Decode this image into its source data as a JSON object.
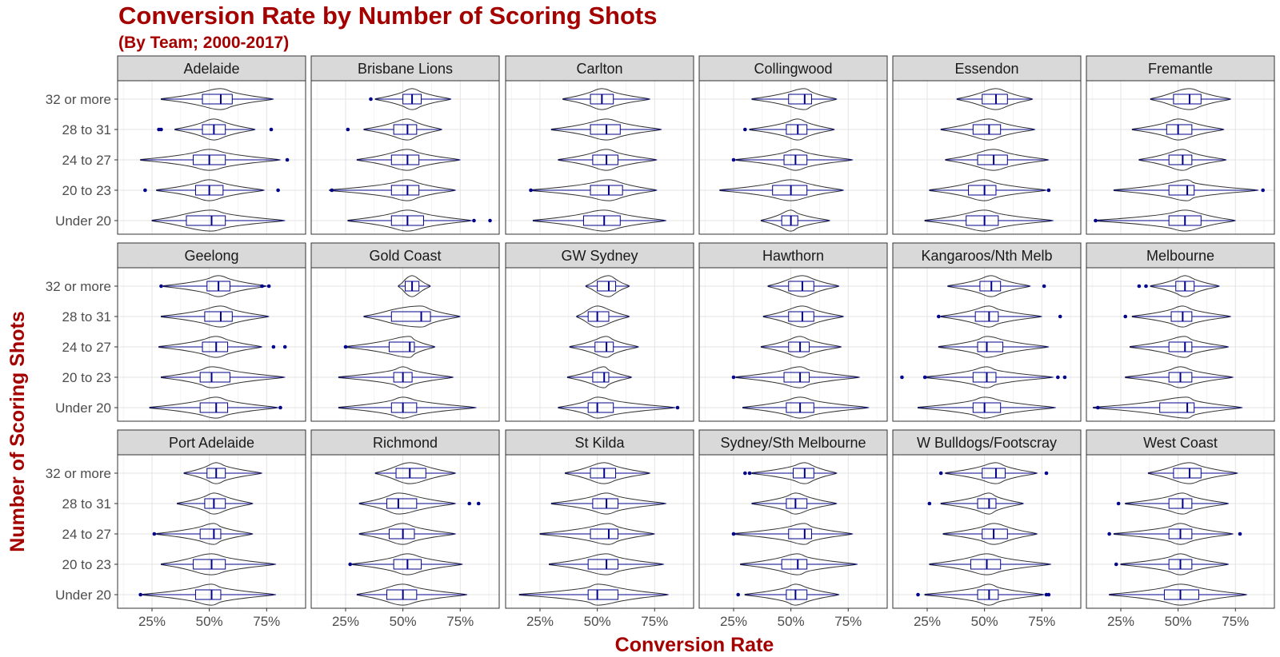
{
  "chart_data": {
    "type": "violin",
    "title": "Conversion Rate by Number of Scoring Shots",
    "subtitle": "(By Team; 2000-2017)",
    "xlabel": "Conversion Rate",
    "ylabel": "Number of Scoring Shots",
    "xlim": [
      0.1,
      0.92
    ],
    "x_ticks": [
      0.25,
      0.5,
      0.75
    ],
    "x_tick_labels": [
      "25%",
      "50%",
      "75%"
    ],
    "categories": [
      "32 or more",
      "28 to 31",
      "24 to 27",
      "20 to 23",
      "Under 20"
    ],
    "grid": true,
    "colors": {
      "violin": "#333333",
      "box": "#00008b",
      "title": "#a50000",
      "strip": "#d9d9d9"
    },
    "panels": [
      {
        "team": "Adelaide",
        "groups": [
          {
            "min": 0.29,
            "q1": 0.47,
            "median": 0.55,
            "q3": 0.6,
            "max": 0.78,
            "outliers": []
          },
          {
            "min": 0.35,
            "q1": 0.47,
            "median": 0.52,
            "q3": 0.57,
            "max": 0.7,
            "outliers": [
              0.28,
              0.29,
              0.77
            ]
          },
          {
            "min": 0.2,
            "q1": 0.43,
            "median": 0.5,
            "q3": 0.57,
            "max": 0.81,
            "outliers": [
              0.84
            ]
          },
          {
            "min": 0.27,
            "q1": 0.44,
            "median": 0.5,
            "q3": 0.56,
            "max": 0.74,
            "outliers": [
              0.22,
              0.8
            ]
          },
          {
            "min": 0.25,
            "q1": 0.4,
            "median": 0.51,
            "q3": 0.57,
            "max": 0.83,
            "outliers": []
          }
        ]
      },
      {
        "team": "Brisbane Lions",
        "groups": [
          {
            "min": 0.38,
            "q1": 0.5,
            "median": 0.54,
            "q3": 0.58,
            "max": 0.71,
            "outliers": [
              0.36
            ]
          },
          {
            "min": 0.33,
            "q1": 0.46,
            "median": 0.52,
            "q3": 0.56,
            "max": 0.67,
            "outliers": [
              0.26
            ]
          },
          {
            "min": 0.3,
            "q1": 0.45,
            "median": 0.52,
            "q3": 0.57,
            "max": 0.75,
            "outliers": []
          },
          {
            "min": 0.18,
            "q1": 0.45,
            "median": 0.52,
            "q3": 0.57,
            "max": 0.73,
            "outliers": [
              0.19
            ]
          },
          {
            "min": 0.26,
            "q1": 0.45,
            "median": 0.52,
            "q3": 0.59,
            "max": 0.8,
            "outliers": [
              0.81,
              0.88
            ]
          }
        ]
      },
      {
        "team": "Carlton",
        "groups": [
          {
            "min": 0.35,
            "q1": 0.47,
            "median": 0.52,
            "q3": 0.57,
            "max": 0.73,
            "outliers": []
          },
          {
            "min": 0.3,
            "q1": 0.47,
            "median": 0.54,
            "q3": 0.6,
            "max": 0.78,
            "outliers": []
          },
          {
            "min": 0.33,
            "q1": 0.48,
            "median": 0.54,
            "q3": 0.59,
            "max": 0.76,
            "outliers": []
          },
          {
            "min": 0.21,
            "q1": 0.47,
            "median": 0.55,
            "q3": 0.61,
            "max": 0.76,
            "outliers": [
              0.21
            ]
          },
          {
            "min": 0.22,
            "q1": 0.44,
            "median": 0.53,
            "q3": 0.6,
            "max": 0.8,
            "outliers": []
          }
        ]
      },
      {
        "team": "Collingwood",
        "groups": [
          {
            "min": 0.33,
            "q1": 0.49,
            "median": 0.56,
            "q3": 0.59,
            "max": 0.7,
            "outliers": []
          },
          {
            "min": 0.32,
            "q1": 0.48,
            "median": 0.53,
            "q3": 0.57,
            "max": 0.69,
            "outliers": [
              0.3
            ]
          },
          {
            "min": 0.26,
            "q1": 0.47,
            "median": 0.52,
            "q3": 0.57,
            "max": 0.77,
            "outliers": [
              0.25
            ]
          },
          {
            "min": 0.19,
            "q1": 0.42,
            "median": 0.5,
            "q3": 0.57,
            "max": 0.73,
            "outliers": []
          },
          {
            "min": 0.37,
            "q1": 0.46,
            "median": 0.5,
            "q3": 0.53,
            "max": 0.67,
            "outliers": []
          }
        ]
      },
      {
        "team": "Essendon",
        "groups": [
          {
            "min": 0.38,
            "q1": 0.49,
            "median": 0.55,
            "q3": 0.6,
            "max": 0.71,
            "outliers": []
          },
          {
            "min": 0.31,
            "q1": 0.45,
            "median": 0.52,
            "q3": 0.57,
            "max": 0.72,
            "outliers": []
          },
          {
            "min": 0.33,
            "q1": 0.47,
            "median": 0.54,
            "q3": 0.6,
            "max": 0.78,
            "outliers": []
          },
          {
            "min": 0.26,
            "q1": 0.43,
            "median": 0.5,
            "q3": 0.55,
            "max": 0.77,
            "outliers": [
              0.78
            ]
          },
          {
            "min": 0.24,
            "q1": 0.42,
            "median": 0.5,
            "q3": 0.56,
            "max": 0.8,
            "outliers": []
          }
        ]
      },
      {
        "team": "Fremantle",
        "groups": [
          {
            "min": 0.38,
            "q1": 0.48,
            "median": 0.55,
            "q3": 0.6,
            "max": 0.73,
            "outliers": []
          },
          {
            "min": 0.3,
            "q1": 0.45,
            "median": 0.5,
            "q3": 0.56,
            "max": 0.7,
            "outliers": []
          },
          {
            "min": 0.33,
            "q1": 0.46,
            "median": 0.52,
            "q3": 0.56,
            "max": 0.71,
            "outliers": []
          },
          {
            "min": 0.22,
            "q1": 0.46,
            "median": 0.54,
            "q3": 0.57,
            "max": 0.85,
            "outliers": [
              0.87
            ]
          },
          {
            "min": 0.14,
            "q1": 0.46,
            "median": 0.53,
            "q3": 0.6,
            "max": 0.75,
            "outliers": [
              0.14
            ]
          }
        ]
      },
      {
        "team": "Geelong",
        "groups": [
          {
            "min": 0.3,
            "q1": 0.49,
            "median": 0.54,
            "q3": 0.59,
            "max": 0.75,
            "outliers": [
              0.29,
              0.73,
              0.76
            ]
          },
          {
            "min": 0.29,
            "q1": 0.48,
            "median": 0.55,
            "q3": 0.6,
            "max": 0.76,
            "outliers": []
          },
          {
            "min": 0.28,
            "q1": 0.47,
            "median": 0.53,
            "q3": 0.58,
            "max": 0.73,
            "outliers": [
              0.78,
              0.83
            ]
          },
          {
            "min": 0.29,
            "q1": 0.46,
            "median": 0.51,
            "q3": 0.59,
            "max": 0.83,
            "outliers": []
          },
          {
            "min": 0.24,
            "q1": 0.46,
            "median": 0.53,
            "q3": 0.58,
            "max": 0.8,
            "outliers": [
              0.81
            ]
          }
        ]
      },
      {
        "team": "Gold Coast",
        "groups": [
          {
            "min": 0.48,
            "q1": 0.51,
            "median": 0.54,
            "q3": 0.57,
            "max": 0.62,
            "outliers": []
          },
          {
            "min": 0.33,
            "q1": 0.45,
            "median": 0.58,
            "q3": 0.62,
            "max": 0.75,
            "outliers": []
          },
          {
            "min": 0.25,
            "q1": 0.44,
            "median": 0.53,
            "q3": 0.55,
            "max": 0.64,
            "outliers": [
              0.25
            ]
          },
          {
            "min": 0.22,
            "q1": 0.46,
            "median": 0.5,
            "q3": 0.54,
            "max": 0.72,
            "outliers": []
          },
          {
            "min": 0.22,
            "q1": 0.45,
            "median": 0.5,
            "q3": 0.56,
            "max": 0.82,
            "outliers": []
          }
        ]
      },
      {
        "team": "GW Sydney",
        "groups": [
          {
            "min": 0.45,
            "q1": 0.5,
            "median": 0.55,
            "q3": 0.58,
            "max": 0.64,
            "outliers": []
          },
          {
            "min": 0.41,
            "q1": 0.46,
            "median": 0.5,
            "q3": 0.55,
            "max": 0.64,
            "outliers": []
          },
          {
            "min": 0.38,
            "q1": 0.49,
            "median": 0.54,
            "q3": 0.57,
            "max": 0.68,
            "outliers": []
          },
          {
            "min": 0.37,
            "q1": 0.48,
            "median": 0.53,
            "q3": 0.55,
            "max": 0.65,
            "outliers": []
          },
          {
            "min": 0.33,
            "q1": 0.46,
            "median": 0.5,
            "q3": 0.57,
            "max": 0.84,
            "outliers": [
              0.85
            ]
          }
        ]
      },
      {
        "team": "Hawthorn",
        "groups": [
          {
            "min": 0.4,
            "q1": 0.49,
            "median": 0.55,
            "q3": 0.6,
            "max": 0.71,
            "outliers": []
          },
          {
            "min": 0.38,
            "q1": 0.49,
            "median": 0.55,
            "q3": 0.6,
            "max": 0.73,
            "outliers": []
          },
          {
            "min": 0.37,
            "q1": 0.49,
            "median": 0.54,
            "q3": 0.58,
            "max": 0.72,
            "outliers": []
          },
          {
            "min": 0.26,
            "q1": 0.47,
            "median": 0.54,
            "q3": 0.58,
            "max": 0.8,
            "outliers": [
              0.25
            ]
          },
          {
            "min": 0.29,
            "q1": 0.48,
            "median": 0.54,
            "q3": 0.6,
            "max": 0.84,
            "outliers": []
          }
        ]
      },
      {
        "team": "Kangaroos/Nth Melb",
        "groups": [
          {
            "min": 0.34,
            "q1": 0.48,
            "median": 0.53,
            "q3": 0.57,
            "max": 0.7,
            "outliers": [
              0.76
            ]
          },
          {
            "min": 0.31,
            "q1": 0.46,
            "median": 0.52,
            "q3": 0.56,
            "max": 0.75,
            "outliers": [
              0.3,
              0.83
            ]
          },
          {
            "min": 0.3,
            "q1": 0.47,
            "median": 0.51,
            "q3": 0.58,
            "max": 0.78,
            "outliers": []
          },
          {
            "min": 0.24,
            "q1": 0.45,
            "median": 0.51,
            "q3": 0.55,
            "max": 0.8,
            "outliers": [
              0.14,
              0.24,
              0.82,
              0.85
            ]
          },
          {
            "min": 0.21,
            "q1": 0.45,
            "median": 0.5,
            "q3": 0.57,
            "max": 0.81,
            "outliers": []
          }
        ]
      },
      {
        "team": "Melbourne",
        "groups": [
          {
            "min": 0.38,
            "q1": 0.49,
            "median": 0.53,
            "q3": 0.57,
            "max": 0.68,
            "outliers": [
              0.33,
              0.36
            ]
          },
          {
            "min": 0.3,
            "q1": 0.47,
            "median": 0.52,
            "q3": 0.56,
            "max": 0.73,
            "outliers": [
              0.27
            ]
          },
          {
            "min": 0.29,
            "q1": 0.46,
            "median": 0.53,
            "q3": 0.56,
            "max": 0.72,
            "outliers": []
          },
          {
            "min": 0.27,
            "q1": 0.46,
            "median": 0.51,
            "q3": 0.56,
            "max": 0.74,
            "outliers": []
          },
          {
            "min": 0.13,
            "q1": 0.42,
            "median": 0.54,
            "q3": 0.57,
            "max": 0.78,
            "outliers": [
              0.15
            ]
          }
        ]
      },
      {
        "team": "Port Adelaide",
        "groups": [
          {
            "min": 0.39,
            "q1": 0.49,
            "median": 0.53,
            "q3": 0.57,
            "max": 0.73,
            "outliers": []
          },
          {
            "min": 0.36,
            "q1": 0.48,
            "median": 0.52,
            "q3": 0.57,
            "max": 0.69,
            "outliers": []
          },
          {
            "min": 0.27,
            "q1": 0.46,
            "median": 0.52,
            "q3": 0.55,
            "max": 0.69,
            "outliers": [
              0.26
            ]
          },
          {
            "min": 0.29,
            "q1": 0.43,
            "median": 0.51,
            "q3": 0.57,
            "max": 0.79,
            "outliers": []
          },
          {
            "min": 0.21,
            "q1": 0.44,
            "median": 0.51,
            "q3": 0.55,
            "max": 0.79,
            "outliers": [
              0.2
            ]
          }
        ]
      },
      {
        "team": "Richmond",
        "groups": [
          {
            "min": 0.38,
            "q1": 0.47,
            "median": 0.53,
            "q3": 0.6,
            "max": 0.73,
            "outliers": []
          },
          {
            "min": 0.31,
            "q1": 0.43,
            "median": 0.48,
            "q3": 0.56,
            "max": 0.73,
            "outliers": [
              0.79,
              0.83
            ]
          },
          {
            "min": 0.31,
            "q1": 0.44,
            "median": 0.5,
            "q3": 0.55,
            "max": 0.73,
            "outliers": []
          },
          {
            "min": 0.28,
            "q1": 0.46,
            "median": 0.52,
            "q3": 0.58,
            "max": 0.76,
            "outliers": [
              0.27
            ]
          },
          {
            "min": 0.3,
            "q1": 0.43,
            "median": 0.5,
            "q3": 0.56,
            "max": 0.78,
            "outliers": []
          }
        ]
      },
      {
        "team": "St Kilda",
        "groups": [
          {
            "min": 0.36,
            "q1": 0.47,
            "median": 0.53,
            "q3": 0.58,
            "max": 0.73,
            "outliers": []
          },
          {
            "min": 0.3,
            "q1": 0.48,
            "median": 0.54,
            "q3": 0.59,
            "max": 0.8,
            "outliers": []
          },
          {
            "min": 0.25,
            "q1": 0.47,
            "median": 0.55,
            "q3": 0.59,
            "max": 0.75,
            "outliers": []
          },
          {
            "min": 0.29,
            "q1": 0.46,
            "median": 0.54,
            "q3": 0.59,
            "max": 0.79,
            "outliers": []
          },
          {
            "min": 0.16,
            "q1": 0.46,
            "median": 0.5,
            "q3": 0.59,
            "max": 0.81,
            "outliers": []
          }
        ]
      },
      {
        "team": "Sydney/Sth Melbourne",
        "groups": [
          {
            "min": 0.33,
            "q1": 0.51,
            "median": 0.56,
            "q3": 0.6,
            "max": 0.7,
            "outliers": [
              0.3,
              0.32
            ]
          },
          {
            "min": 0.33,
            "q1": 0.48,
            "median": 0.52,
            "q3": 0.57,
            "max": 0.7,
            "outliers": []
          },
          {
            "min": 0.25,
            "q1": 0.49,
            "median": 0.56,
            "q3": 0.59,
            "max": 0.77,
            "outliers": [
              0.25
            ]
          },
          {
            "min": 0.28,
            "q1": 0.46,
            "median": 0.53,
            "q3": 0.57,
            "max": 0.79,
            "outliers": []
          },
          {
            "min": 0.3,
            "q1": 0.48,
            "median": 0.52,
            "q3": 0.57,
            "max": 0.71,
            "outliers": [
              0.27
            ]
          }
        ]
      },
      {
        "team": "W Bulldogs/Footscray",
        "groups": [
          {
            "min": 0.33,
            "q1": 0.49,
            "median": 0.55,
            "q3": 0.59,
            "max": 0.73,
            "outliers": [
              0.31,
              0.77
            ]
          },
          {
            "min": 0.31,
            "q1": 0.47,
            "median": 0.52,
            "q3": 0.55,
            "max": 0.67,
            "outliers": [
              0.26
            ]
          },
          {
            "min": 0.32,
            "q1": 0.49,
            "median": 0.54,
            "q3": 0.6,
            "max": 0.73,
            "outliers": []
          },
          {
            "min": 0.26,
            "q1": 0.44,
            "median": 0.51,
            "q3": 0.57,
            "max": 0.79,
            "outliers": []
          },
          {
            "min": 0.24,
            "q1": 0.47,
            "median": 0.52,
            "q3": 0.56,
            "max": 0.76,
            "outliers": [
              0.21,
              0.77,
              0.78
            ]
          }
        ]
      },
      {
        "team": "West Coast",
        "groups": [
          {
            "min": 0.37,
            "q1": 0.48,
            "median": 0.55,
            "q3": 0.6,
            "max": 0.76,
            "outliers": []
          },
          {
            "min": 0.27,
            "q1": 0.46,
            "median": 0.52,
            "q3": 0.56,
            "max": 0.72,
            "outliers": [
              0.24
            ]
          },
          {
            "min": 0.22,
            "q1": 0.46,
            "median": 0.51,
            "q3": 0.56,
            "max": 0.74,
            "outliers": [
              0.2,
              0.77
            ]
          },
          {
            "min": 0.25,
            "q1": 0.46,
            "median": 0.51,
            "q3": 0.56,
            "max": 0.72,
            "outliers": [
              0.23
            ]
          },
          {
            "min": 0.2,
            "q1": 0.44,
            "median": 0.51,
            "q3": 0.59,
            "max": 0.8,
            "outliers": []
          }
        ]
      }
    ]
  }
}
